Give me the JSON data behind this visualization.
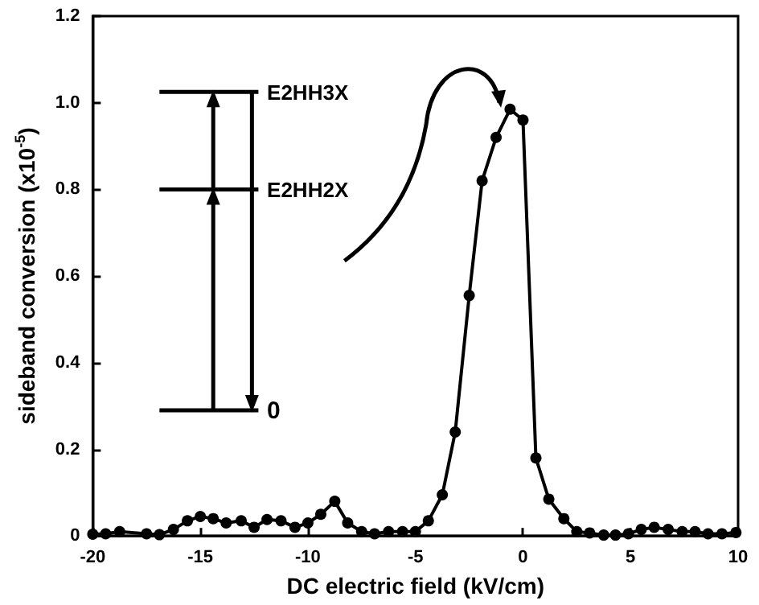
{
  "chart_data": {
    "type": "line",
    "xlabel": "DC electric field (kV/cm)",
    "ylabel": "sideband conversion (x10$^{-5}$)",
    "x": [
      -20,
      -19.4,
      -18.75,
      -17.5,
      -16.9,
      -16.25,
      -15.6,
      -15,
      -14.4,
      -13.8,
      -13.1,
      -12.5,
      -11.9,
      -11.25,
      -10.6,
      -10,
      -9.4,
      -8.75,
      -8.15,
      -7.5,
      -6.9,
      -6.25,
      -5.6,
      -5,
      -4.4,
      -3.75,
      -3.15,
      -2.5,
      -1.9,
      -1.25,
      -0.6,
      0,
      0.6,
      1.2,
      1.9,
      2.5,
      3.1,
      3.75,
      4.3,
      4.9,
      5.5,
      6.1,
      6.75,
      7.4,
      8,
      8.6,
      9.25,
      9.9
    ],
    "series": [
      {
        "color": "#000000",
        "values": [
          0.004,
          0.005,
          0.01,
          0.005,
          0.003,
          0.015,
          0.035,
          0.045,
          0.04,
          0.03,
          0.035,
          0.02,
          0.038,
          0.035,
          0.02,
          0.03,
          0.05,
          0.08,
          0.03,
          0.01,
          0.005,
          0.01,
          0.01,
          0.01,
          0.035,
          0.095,
          0.24,
          0.555,
          0.82,
          0.92,
          0.985,
          0.96,
          0.18,
          0.085,
          0.04,
          0.01,
          0.007,
          0.002,
          0.002,
          0.005,
          0.015,
          0.02,
          0.015,
          0.01,
          0.01,
          0.005,
          0.005,
          0.008
        ]
      }
    ],
    "xlim": [
      -20,
      10
    ],
    "xticks": [
      -20,
      -15,
      -10,
      -5,
      0,
      5,
      10
    ],
    "ylim": [
      0,
      1.2
    ],
    "yticks": [
      0,
      0.2,
      0.4,
      0.6,
      0.8,
      {
        "value": 1,
        "label": "1.0"
      },
      1.2
    ],
    "annotations": [
      "E2HH3X",
      "E2HH2X",
      "0"
    ],
    "marker": "circle",
    "line_style": "solid"
  }
}
